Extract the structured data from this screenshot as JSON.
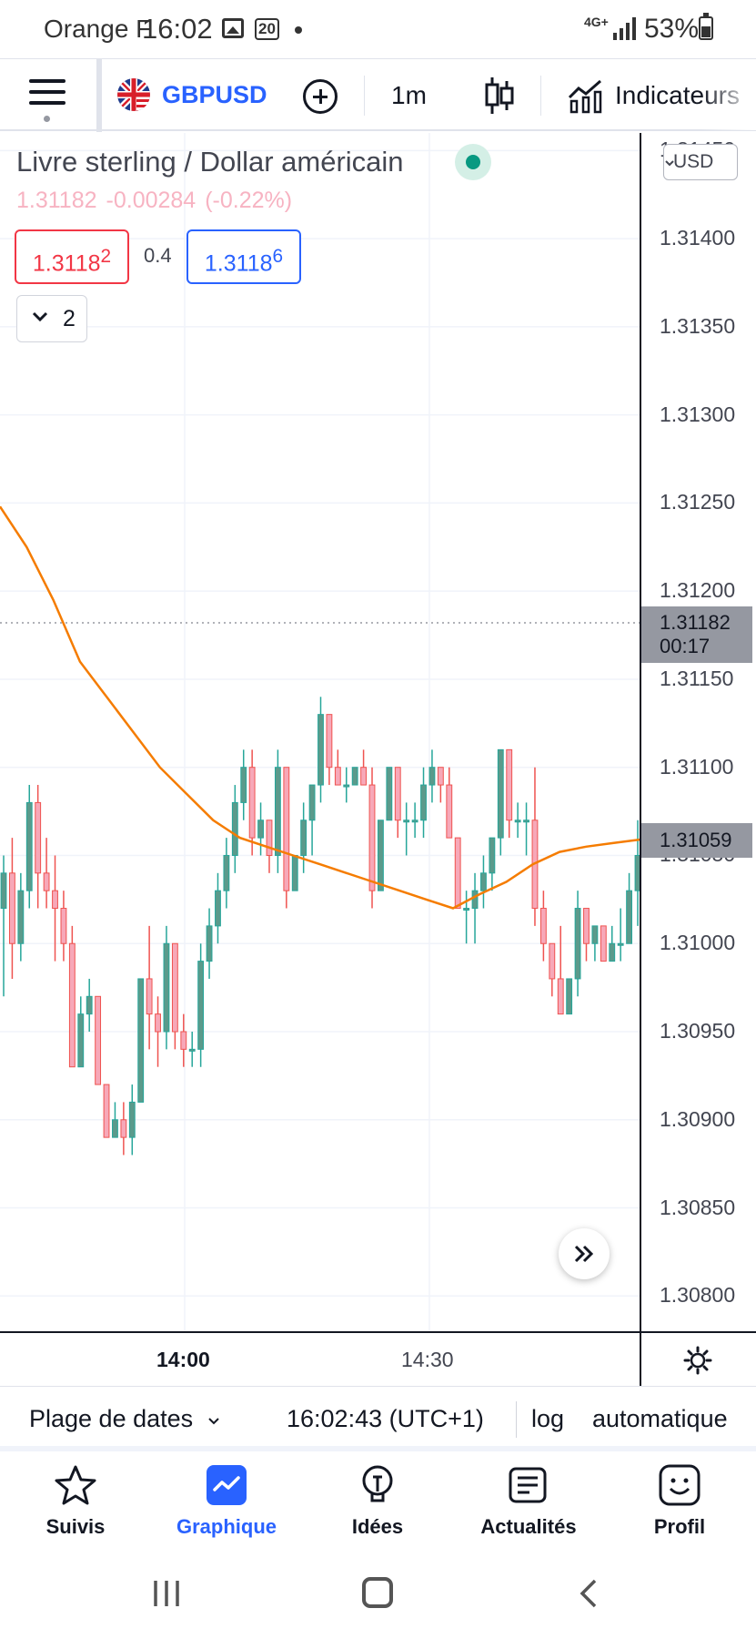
{
  "status_bar": {
    "carrier": "Orange F",
    "time": "16:02",
    "notification_badge": "20",
    "network": "4G+",
    "battery": "53%"
  },
  "toolbar": {
    "symbol": "GBPUSD",
    "interval": "1m",
    "indicators_label": "Indicateurs",
    "icons": [
      "menu-icon",
      "uk-us-flag-icon",
      "plus-circle-icon",
      "candlestick-icon",
      "indicators-icon"
    ]
  },
  "legend": {
    "title": "Livre sterling / Dollar américain",
    "last": "1.31182",
    "change": "-0.00284",
    "change_pct": "(-0.22%)",
    "bid_main": "1.3118",
    "bid_pip": "2",
    "spread": "0.4",
    "ask_main": "1.3118",
    "ask_pip": "6",
    "indicator_count": "2"
  },
  "price_axis": {
    "currency": "USD",
    "labels": [
      "1.31450",
      "1.31400",
      "1.31350",
      "1.31300",
      "1.31250",
      "1.31200",
      "1.31150",
      "1.31100",
      "1.31050",
      "1.31000",
      "1.30950",
      "1.30900",
      "1.30850",
      "1.30800"
    ],
    "last_price_label": "1.31182",
    "countdown": "00:17",
    "ma_price_label": "1.31059"
  },
  "time_axis": {
    "labels": [
      {
        "text": "14:00",
        "bold": true
      },
      {
        "text": "14:30",
        "bold": false
      }
    ]
  },
  "info_bar": {
    "date_range": "Plage de dates",
    "clock": "16:02:43 (UTC+1)",
    "log": "log",
    "auto": "automatique"
  },
  "bottom_nav": {
    "items": [
      {
        "label": "Suivis",
        "icon": "star-icon"
      },
      {
        "label": "Graphique",
        "icon": "chart-icon",
        "active": true
      },
      {
        "label": "Idées",
        "icon": "lightbulb-icon"
      },
      {
        "label": "Actualités",
        "icon": "news-icon"
      },
      {
        "label": "Profil",
        "icon": "smiley-icon"
      }
    ]
  },
  "colors": {
    "up": "#26a69a",
    "up_fill": "#5b9a8b",
    "down": "#ef5350",
    "down_fill": "#f7a8b8",
    "ma": "#f57c00",
    "accent": "#2962ff"
  },
  "chart_data": {
    "type": "candlestick",
    "interval": "1m",
    "ylim": [
      1.3078,
      1.3146
    ],
    "y_ticks": [
      1.3145,
      1.314,
      1.3135,
      1.313,
      1.3125,
      1.312,
      1.3115,
      1.311,
      1.3105,
      1.31,
      1.3095,
      1.309,
      1.3085,
      1.308
    ],
    "x_ticks": [
      "14:00",
      "14:30"
    ],
    "last_price": 1.31182,
    "candles": [
      {
        "o": 1.3102,
        "h": 1.3105,
        "l": 1.3097,
        "c": 1.3104
      },
      {
        "o": 1.3104,
        "h": 1.3106,
        "l": 1.3098,
        "c": 1.31
      },
      {
        "o": 1.31,
        "h": 1.3104,
        "l": 1.3099,
        "c": 1.3103
      },
      {
        "o": 1.3103,
        "h": 1.3109,
        "l": 1.3102,
        "c": 1.3108
      },
      {
        "o": 1.3108,
        "h": 1.3109,
        "l": 1.3102,
        "c": 1.3104
      },
      {
        "o": 1.3104,
        "h": 1.3106,
        "l": 1.3102,
        "c": 1.3103
      },
      {
        "o": 1.3103,
        "h": 1.3105,
        "l": 1.3099,
        "c": 1.3102
      },
      {
        "o": 1.3102,
        "h": 1.3103,
        "l": 1.3099,
        "c": 1.31
      },
      {
        "o": 1.31,
        "h": 1.3101,
        "l": 1.3093,
        "c": 1.3093
      },
      {
        "o": 1.3093,
        "h": 1.3097,
        "l": 1.3093,
        "c": 1.3096
      },
      {
        "o": 1.3096,
        "h": 1.3098,
        "l": 1.3095,
        "c": 1.3097
      },
      {
        "o": 1.3097,
        "h": 1.3097,
        "l": 1.3092,
        "c": 1.3092
      },
      {
        "o": 1.3092,
        "h": 1.3092,
        "l": 1.3089,
        "c": 1.3089
      },
      {
        "o": 1.3089,
        "h": 1.3091,
        "l": 1.3089,
        "c": 1.309
      },
      {
        "o": 1.309,
        "h": 1.3091,
        "l": 1.3088,
        "c": 1.3089
      },
      {
        "o": 1.3089,
        "h": 1.3092,
        "l": 1.3088,
        "c": 1.3091
      },
      {
        "o": 1.3091,
        "h": 1.3098,
        "l": 1.3091,
        "c": 1.3098
      },
      {
        "o": 1.3098,
        "h": 1.3101,
        "l": 1.3094,
        "c": 1.3096
      },
      {
        "o": 1.3096,
        "h": 1.3097,
        "l": 1.3093,
        "c": 1.3095
      },
      {
        "o": 1.3095,
        "h": 1.3101,
        "l": 1.3094,
        "c": 1.31
      },
      {
        "o": 1.31,
        "h": 1.31,
        "l": 1.3094,
        "c": 1.3095
      },
      {
        "o": 1.3095,
        "h": 1.3096,
        "l": 1.3093,
        "c": 1.3094
      },
      {
        "o": 1.3094,
        "h": 1.3095,
        "l": 1.3093,
        "c": 1.3094
      },
      {
        "o": 1.3094,
        "h": 1.31,
        "l": 1.3093,
        "c": 1.3099
      },
      {
        "o": 1.3099,
        "h": 1.3102,
        "l": 1.3098,
        "c": 1.3101
      },
      {
        "o": 1.3101,
        "h": 1.3104,
        "l": 1.31,
        "c": 1.3103
      },
      {
        "o": 1.3103,
        "h": 1.3106,
        "l": 1.3102,
        "c": 1.3105
      },
      {
        "o": 1.3105,
        "h": 1.3109,
        "l": 1.3104,
        "c": 1.3108
      },
      {
        "o": 1.3108,
        "h": 1.3111,
        "l": 1.3107,
        "c": 1.311
      },
      {
        "o": 1.311,
        "h": 1.3111,
        "l": 1.3105,
        "c": 1.3106
      },
      {
        "o": 1.3106,
        "h": 1.3108,
        "l": 1.3105,
        "c": 1.3107
      },
      {
        "o": 1.3107,
        "h": 1.3107,
        "l": 1.3104,
        "c": 1.3105
      },
      {
        "o": 1.3105,
        "h": 1.3111,
        "l": 1.3104,
        "c": 1.311
      },
      {
        "o": 1.311,
        "h": 1.311,
        "l": 1.3102,
        "c": 1.3103
      },
      {
        "o": 1.3103,
        "h": 1.3105,
        "l": 1.3103,
        "c": 1.3105
      },
      {
        "o": 1.3105,
        "h": 1.3108,
        "l": 1.3104,
        "c": 1.3107
      },
      {
        "o": 1.3107,
        "h": 1.3109,
        "l": 1.3105,
        "c": 1.3109
      },
      {
        "o": 1.3109,
        "h": 1.3114,
        "l": 1.3108,
        "c": 1.3113
      },
      {
        "o": 1.3113,
        "h": 1.3113,
        "l": 1.3109,
        "c": 1.311
      },
      {
        "o": 1.311,
        "h": 1.3111,
        "l": 1.3109,
        "c": 1.3109
      },
      {
        "o": 1.3109,
        "h": 1.311,
        "l": 1.3108,
        "c": 1.3109
      },
      {
        "o": 1.3109,
        "h": 1.311,
        "l": 1.3109,
        "c": 1.311
      },
      {
        "o": 1.311,
        "h": 1.3111,
        "l": 1.3109,
        "c": 1.3109
      },
      {
        "o": 1.3109,
        "h": 1.311,
        "l": 1.3102,
        "c": 1.3103
      },
      {
        "o": 1.3103,
        "h": 1.3107,
        "l": 1.3103,
        "c": 1.3107
      },
      {
        "o": 1.3107,
        "h": 1.311,
        "l": 1.3107,
        "c": 1.311
      },
      {
        "o": 1.311,
        "h": 1.311,
        "l": 1.3106,
        "c": 1.3107
      },
      {
        "o": 1.3107,
        "h": 1.3108,
        "l": 1.3105,
        "c": 1.3107
      },
      {
        "o": 1.3107,
        "h": 1.3108,
        "l": 1.3106,
        "c": 1.3107
      },
      {
        "o": 1.3107,
        "h": 1.311,
        "l": 1.3106,
        "c": 1.3109
      },
      {
        "o": 1.3109,
        "h": 1.3111,
        "l": 1.3108,
        "c": 1.311
      },
      {
        "o": 1.311,
        "h": 1.311,
        "l": 1.3108,
        "c": 1.3109
      },
      {
        "o": 1.3109,
        "h": 1.311,
        "l": 1.3106,
        "c": 1.3106
      },
      {
        "o": 1.3106,
        "h": 1.3106,
        "l": 1.3102,
        "c": 1.3102
      },
      {
        "o": 1.3102,
        "h": 1.3103,
        "l": 1.31,
        "c": 1.3102
      },
      {
        "o": 1.3102,
        "h": 1.3104,
        "l": 1.31,
        "c": 1.3103
      },
      {
        "o": 1.3103,
        "h": 1.3105,
        "l": 1.3102,
        "c": 1.3104
      },
      {
        "o": 1.3104,
        "h": 1.3106,
        "l": 1.3103,
        "c": 1.3106
      },
      {
        "o": 1.3106,
        "h": 1.3111,
        "l": 1.3105,
        "c": 1.3111
      },
      {
        "o": 1.3111,
        "h": 1.3111,
        "l": 1.3106,
        "c": 1.3107
      },
      {
        "o": 1.3107,
        "h": 1.3108,
        "l": 1.3106,
        "c": 1.3107
      },
      {
        "o": 1.3107,
        "h": 1.3108,
        "l": 1.3105,
        "c": 1.3107
      },
      {
        "o": 1.3107,
        "h": 1.311,
        "l": 1.3101,
        "c": 1.3102
      },
      {
        "o": 1.3102,
        "h": 1.3103,
        "l": 1.3099,
        "c": 1.31
      },
      {
        "o": 1.31,
        "h": 1.31,
        "l": 1.3097,
        "c": 1.3098
      },
      {
        "o": 1.3098,
        "h": 1.3101,
        "l": 1.3096,
        "c": 1.3096
      },
      {
        "o": 1.3096,
        "h": 1.3098,
        "l": 1.3096,
        "c": 1.3098
      },
      {
        "o": 1.3098,
        "h": 1.3103,
        "l": 1.3097,
        "c": 1.3102
      },
      {
        "o": 1.3102,
        "h": 1.3102,
        "l": 1.3099,
        "c": 1.31
      },
      {
        "o": 1.31,
        "h": 1.3101,
        "l": 1.3099,
        "c": 1.3101
      },
      {
        "o": 1.3101,
        "h": 1.3101,
        "l": 1.3099,
        "c": 1.3099
      },
      {
        "o": 1.3099,
        "h": 1.3101,
        "l": 1.3099,
        "c": 1.31
      },
      {
        "o": 1.31,
        "h": 1.3102,
        "l": 1.3099,
        "c": 1.31
      },
      {
        "o": 1.31,
        "h": 1.3104,
        "l": 1.31,
        "c": 1.3103
      },
      {
        "o": 1.3103,
        "h": 1.3107,
        "l": 1.3101,
        "c": 1.3105
      }
    ],
    "series": [
      {
        "type": "line",
        "values": [
          1.31248,
          1.31225,
          1.31195,
          1.3116,
          1.3114,
          1.3112,
          1.311,
          1.31085,
          1.3107,
          1.3106,
          1.31055,
          1.3105,
          1.31045,
          1.3104,
          1.31035,
          1.3103,
          1.31025,
          1.3102,
          1.31028,
          1.31035,
          1.31045,
          1.31052,
          1.31055,
          1.31057,
          1.31059
        ]
      }
    ]
  }
}
